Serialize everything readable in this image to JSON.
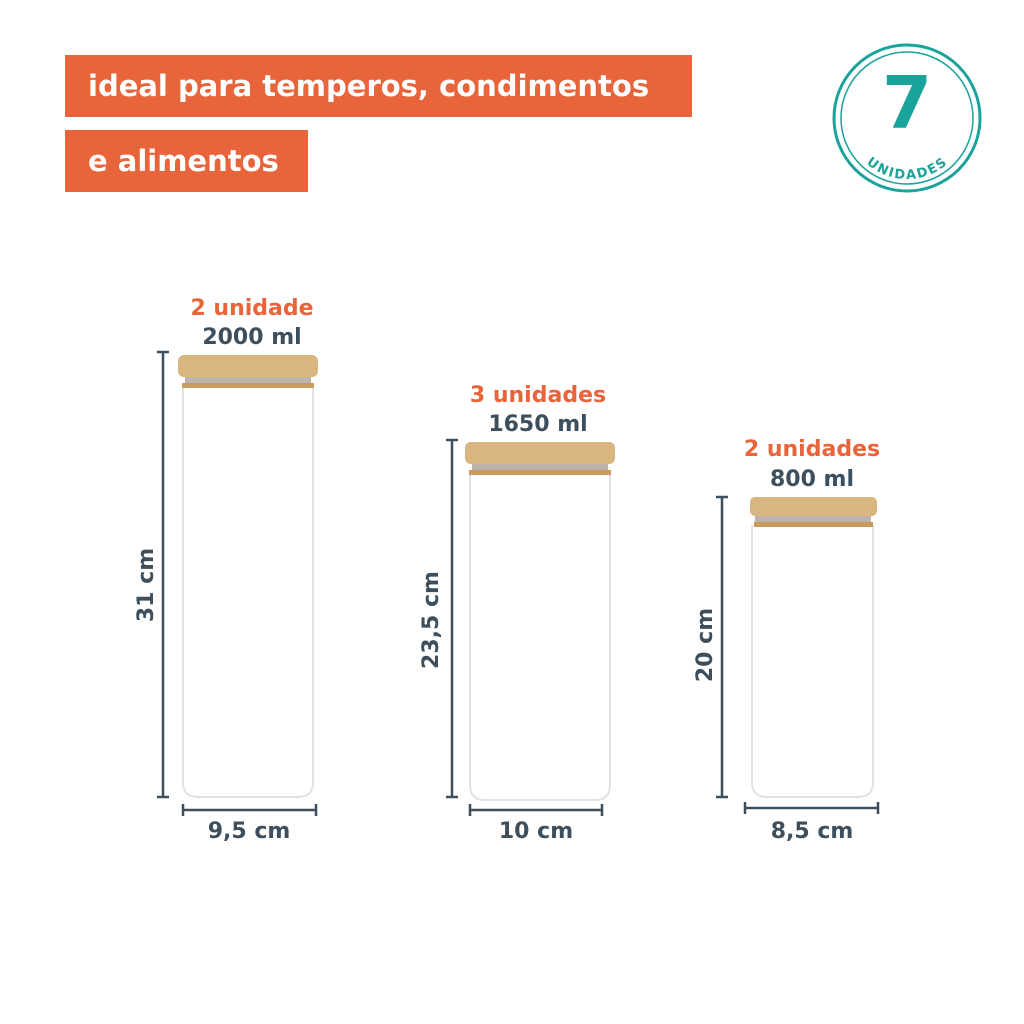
{
  "banner": {
    "lines": [
      "ideal para temperos, condimentos",
      "e alimentos"
    ]
  },
  "badge": {
    "count": "7",
    "label": "UNIDADES"
  },
  "jars": [
    {
      "quantity": "2 unidade",
      "capacity": "2000 ml",
      "height": "31 cm",
      "width": "9,5 cm"
    },
    {
      "quantity": "3 unidades",
      "capacity": "1650 ml",
      "height": "23,5 cm",
      "width": "10 cm"
    },
    {
      "quantity": "2 unidades",
      "capacity": "800 ml",
      "height": "20 cm",
      "width": "8,5 cm"
    }
  ]
}
